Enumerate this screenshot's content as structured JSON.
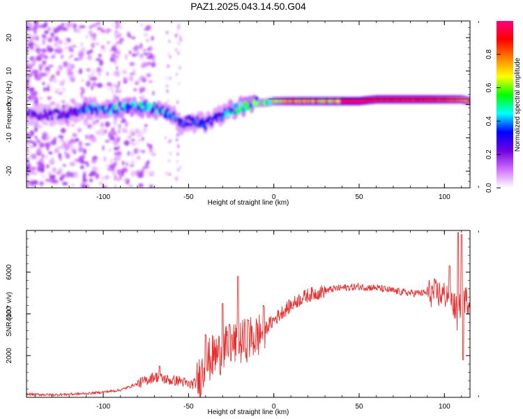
{
  "title": "PAZ1.2025.043.14.50.G04",
  "chart_data": [
    {
      "type": "heatmap",
      "title": "PAZ1.2025.043.14.50.G04",
      "xlabel": "Height of straight line (km)",
      "ylabel": "Frequency (Hz)",
      "xlim": [
        -145,
        115
      ],
      "ylim": [
        -25,
        25
      ],
      "xticks": [
        "-100",
        "-50",
        "0",
        "50",
        "100"
      ],
      "yticks": [
        "-20",
        "-10",
        "0",
        "10",
        "20"
      ],
      "colorbar": {
        "label": "Normalized spectral amplitude",
        "range": [
          0,
          1
        ],
        "ticks": [
          "0.0",
          "0.2",
          "0.4",
          "0.6",
          "0.8"
        ],
        "colors": [
          "#ffffff",
          "#d070ff",
          "#7000e0",
          "#0000ff",
          "#00ffff",
          "#00ff00",
          "#ffff00",
          "#ff8000",
          "#ff0000",
          "#ff0080"
        ]
      },
      "ridge": {
        "x": [
          -145,
          -130,
          -115,
          -110,
          -100,
          -90,
          -80,
          -70,
          -60,
          -55,
          -50,
          -45,
          -40,
          -35,
          -30,
          -25,
          -20,
          -15,
          -10,
          -5,
          0,
          10,
          20,
          30,
          40,
          50,
          60,
          70,
          80,
          90,
          100,
          110,
          115
        ],
        "y": [
          -3,
          -3,
          -2,
          -1,
          -2,
          -1,
          -0.5,
          -1,
          -3,
          -6,
          -5,
          -5,
          -6,
          -4,
          -3,
          -2,
          -1,
          0,
          0.5,
          0.5,
          1,
          1,
          1,
          1,
          1,
          1,
          1.5,
          1.5,
          1.5,
          1.5,
          1.5,
          1.5,
          1
        ],
        "amplitude": [
          0.25,
          0.25,
          0.3,
          0.4,
          0.4,
          0.45,
          0.5,
          0.45,
          0.4,
          0.35,
          0.35,
          0.35,
          0.35,
          0.3,
          0.35,
          0.45,
          0.5,
          0.55,
          0.6,
          0.6,
          0.75,
          0.9,
          0.95,
          0.98,
          1.0,
          1.0,
          0.95,
          0.95,
          0.95,
          0.95,
          0.9,
          0.85,
          0.8
        ]
      }
    },
    {
      "type": "line",
      "xlabel": "Height of straight line (km)",
      "ylabel": "SNR (10 * v/v)",
      "xlim": [
        -145,
        115
      ],
      "ylim": [
        0,
        8000
      ],
      "xticks": [
        "-100",
        "-50",
        "0",
        "50",
        "100"
      ],
      "yticks": [
        "2000",
        "4000",
        "6000"
      ],
      "color": "#e83030",
      "x": [
        -145,
        -130,
        -120,
        -110,
        -100,
        -90,
        -85,
        -80,
        -75,
        -70,
        -65,
        -60,
        -55,
        -50,
        -45,
        -42,
        -40,
        -35,
        -30,
        -25,
        -20,
        -15,
        -10,
        -5,
        0,
        5,
        10,
        15,
        20,
        25,
        30,
        35,
        40,
        50,
        60,
        70,
        80,
        90,
        95,
        100,
        103,
        105,
        107,
        108,
        110,
        112,
        115
      ],
      "y": [
        150,
        120,
        150,
        180,
        250,
        350,
        500,
        650,
        800,
        1000,
        900,
        800,
        800,
        600,
        700,
        1200,
        1600,
        2000,
        2200,
        2500,
        2600,
        2800,
        2900,
        3300,
        3700,
        4100,
        4400,
        4700,
        4900,
        5000,
        5100,
        5200,
        5250,
        5300,
        5250,
        5100,
        5000,
        5000,
        5000,
        4900,
        5000,
        4500,
        4200,
        3500,
        5000,
        4700,
        4600
      ],
      "spikes": [
        [
          -67,
          1500
        ],
        [
          -40,
          3000
        ],
        [
          -30,
          4500
        ],
        [
          -26,
          3500
        ],
        [
          -21,
          5800
        ],
        [
          -15,
          3700
        ],
        [
          -6,
          4400
        ],
        [
          103,
          6300
        ],
        [
          108,
          7900
        ],
        [
          110,
          7800
        ],
        [
          111,
          1800
        ]
      ]
    }
  ]
}
